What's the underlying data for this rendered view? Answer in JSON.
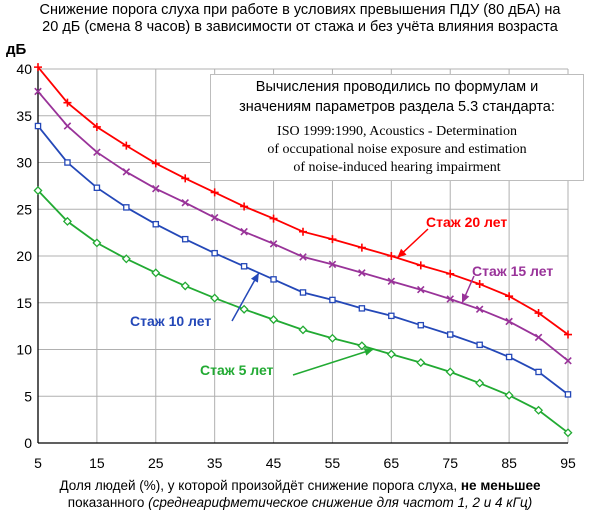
{
  "title": {
    "line1": "Снижение порога слуха при работе в условиях превышения ПДУ (80 дБА) на",
    "line2": "20 дБ (смена 8 часов) в зависимости от стажа и без учёта влияния возраста"
  },
  "note": {
    "ru_line1": "Вычисления проводились по формулам и",
    "ru_line2": "значениям параметров раздела 5.3 стандарта:",
    "en_line1": "ISO 1999:1990, Acoustics - Determination",
    "en_line2": "of occupational noise exposure and estimation",
    "en_line3": "of noise-induced hearing impairment"
  },
  "xlabel": {
    "part1": "Доля людей (%), у которой произойдёт снижение порога слуха, ",
    "part2_bold": "не меньшее",
    "line2_plain": "показанного ",
    "line2_italic": "(среднеарифметическое снижение для частот 1, 2 и 4 кГц)"
  },
  "colors": {
    "grid": "#b0b0b0",
    "stazh20": "#ff0000",
    "stazh15": "#993399",
    "stazh10": "#2448b8",
    "stazh5": "#22aa33"
  },
  "chart_data": {
    "type": "line",
    "ylabel": "дБ",
    "xlim": [
      5,
      95
    ],
    "ylim": [
      0,
      40
    ],
    "x_ticks": [
      5,
      15,
      25,
      35,
      45,
      55,
      65,
      75,
      85,
      95
    ],
    "y_ticks": [
      0,
      5,
      10,
      15,
      20,
      25,
      30,
      35,
      40
    ],
    "grid": true,
    "x": [
      5,
      10,
      15,
      20,
      25,
      30,
      35,
      40,
      45,
      50,
      55,
      60,
      65,
      70,
      75,
      80,
      85,
      90,
      95
    ],
    "series": [
      {
        "name": "Стаж 20 лет",
        "color": "#ff0000",
        "marker": "plus",
        "values": [
          40.2,
          36.4,
          33.8,
          31.8,
          29.9,
          28.3,
          26.8,
          25.3,
          24.0,
          22.6,
          21.8,
          20.9,
          20.0,
          19.0,
          18.1,
          17.0,
          15.7,
          13.9,
          11.6
        ]
      },
      {
        "name": "Стаж 15 лет",
        "color": "#993399",
        "marker": "x",
        "values": [
          37.6,
          33.9,
          31.1,
          29.0,
          27.2,
          25.7,
          24.1,
          22.6,
          21.3,
          19.9,
          19.1,
          18.2,
          17.3,
          16.4,
          15.4,
          14.3,
          13.0,
          11.3,
          8.8
        ]
      },
      {
        "name": "Стаж 10 лет",
        "color": "#2448b8",
        "marker": "square",
        "values": [
          33.9,
          30.0,
          27.3,
          25.2,
          23.4,
          21.8,
          20.3,
          18.9,
          17.5,
          16.1,
          15.3,
          14.4,
          13.6,
          12.6,
          11.6,
          10.5,
          9.2,
          7.6,
          5.2
        ]
      },
      {
        "name": "Стаж 5 лет",
        "color": "#22aa33",
        "marker": "diamond",
        "values": [
          27.0,
          23.7,
          21.4,
          19.7,
          18.2,
          16.8,
          15.5,
          14.3,
          13.2,
          12.1,
          11.2,
          10.4,
          9.5,
          8.6,
          7.6,
          6.4,
          5.1,
          3.5,
          1.1
        ]
      }
    ]
  }
}
